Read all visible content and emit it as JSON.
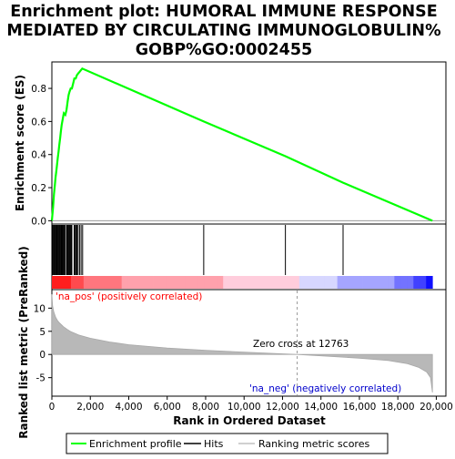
{
  "title_lines": [
    "Enrichment plot: HUMORAL IMMUNE RESPONSE",
    "MEDIATED BY CIRCULATING IMMUNOGLOBULIN%",
    "GOBP%GO:0002455"
  ],
  "annotations": {
    "pos_label": "'na_pos' (positively correlated)",
    "neg_label": "'na_neg' (negatively correlated)",
    "zero_cross": "Zero cross at 12763"
  },
  "legend": [
    {
      "label": "Enrichment profile",
      "color": "#00ff00"
    },
    {
      "label": "Hits",
      "color": "#000000"
    },
    {
      "label": "Ranking metric scores",
      "color": "#c0c0c0"
    }
  ],
  "chart_data": {
    "type": "line",
    "xlabel": "Rank in Ordered Dataset",
    "x_ticks": [
      0,
      2000,
      4000,
      6000,
      8000,
      10000,
      12000,
      14000,
      16000,
      18000,
      20000
    ],
    "x_tick_labels": [
      "0",
      "2,000",
      "4,000",
      "6,000",
      "8,000",
      "10,000",
      "12,000",
      "14,000",
      "16,000",
      "18,000",
      "20,000"
    ],
    "xlim": [
      0,
      20500
    ],
    "zero_cross": 12763,
    "es_panel": {
      "ylabel": "Enrichment score (ES)",
      "ylim": [
        -0.02,
        0.96
      ],
      "y_ticks": [
        0.0,
        0.2,
        0.4,
        0.6,
        0.8
      ],
      "y_tick_labels": [
        "0.0",
        "0.2",
        "0.4",
        "0.6",
        "0.8"
      ],
      "series": [
        {
          "name": "Enrichment profile",
          "color": "#00ff00",
          "x": [
            0,
            60,
            110,
            150,
            190,
            230,
            270,
            310,
            350,
            390,
            430,
            470,
            510,
            560,
            620,
            700,
            760,
            820,
            870,
            920,
            980,
            1040,
            1110,
            1170,
            1240,
            1300,
            1370,
            1440,
            1510,
            1580,
            7900,
            12150,
            15150,
            19800
          ],
          "y": [
            0.0,
            0.08,
            0.16,
            0.21,
            0.26,
            0.3,
            0.34,
            0.38,
            0.42,
            0.46,
            0.5,
            0.54,
            0.58,
            0.61,
            0.65,
            0.64,
            0.67,
            0.72,
            0.76,
            0.78,
            0.8,
            0.8,
            0.83,
            0.86,
            0.86,
            0.88,
            0.89,
            0.9,
            0.91,
            0.92,
            0.6,
            0.39,
            0.23,
            0.0
          ]
        }
      ]
    },
    "hits": [
      40,
      80,
      120,
      160,
      200,
      240,
      280,
      320,
      360,
      400,
      440,
      480,
      520,
      560,
      600,
      640,
      680,
      760,
      800,
      840,
      880,
      920,
      960,
      1000,
      1040,
      1160,
      1200,
      1260,
      1300,
      1360,
      1440,
      1520,
      1600,
      7900,
      12150,
      15150
    ],
    "metric_panel": {
      "ylabel": "Ranked list metric (PreRanked)",
      "ylim": [
        -9,
        14
      ],
      "y_ticks": [
        -5,
        0,
        5,
        10
      ],
      "y_tick_labels": [
        "-5",
        "0",
        "5",
        "10"
      ],
      "x": [
        0,
        40,
        100,
        200,
        300,
        400,
        600,
        800,
        1000,
        1400,
        2000,
        3000,
        4000,
        6000,
        8000,
        10000,
        12000,
        12763,
        14000,
        16000,
        17500,
        18500,
        19100,
        19500,
        19700,
        19800
      ],
      "y": [
        13.0,
        10.5,
        9.2,
        8.0,
        7.3,
        6.8,
        6.0,
        5.4,
        4.9,
        4.2,
        3.5,
        2.7,
        2.1,
        1.4,
        0.9,
        0.5,
        0.15,
        0.0,
        -0.3,
        -0.8,
        -1.3,
        -2.0,
        -2.8,
        -3.8,
        -5.0,
        -8.2
      ]
    }
  }
}
